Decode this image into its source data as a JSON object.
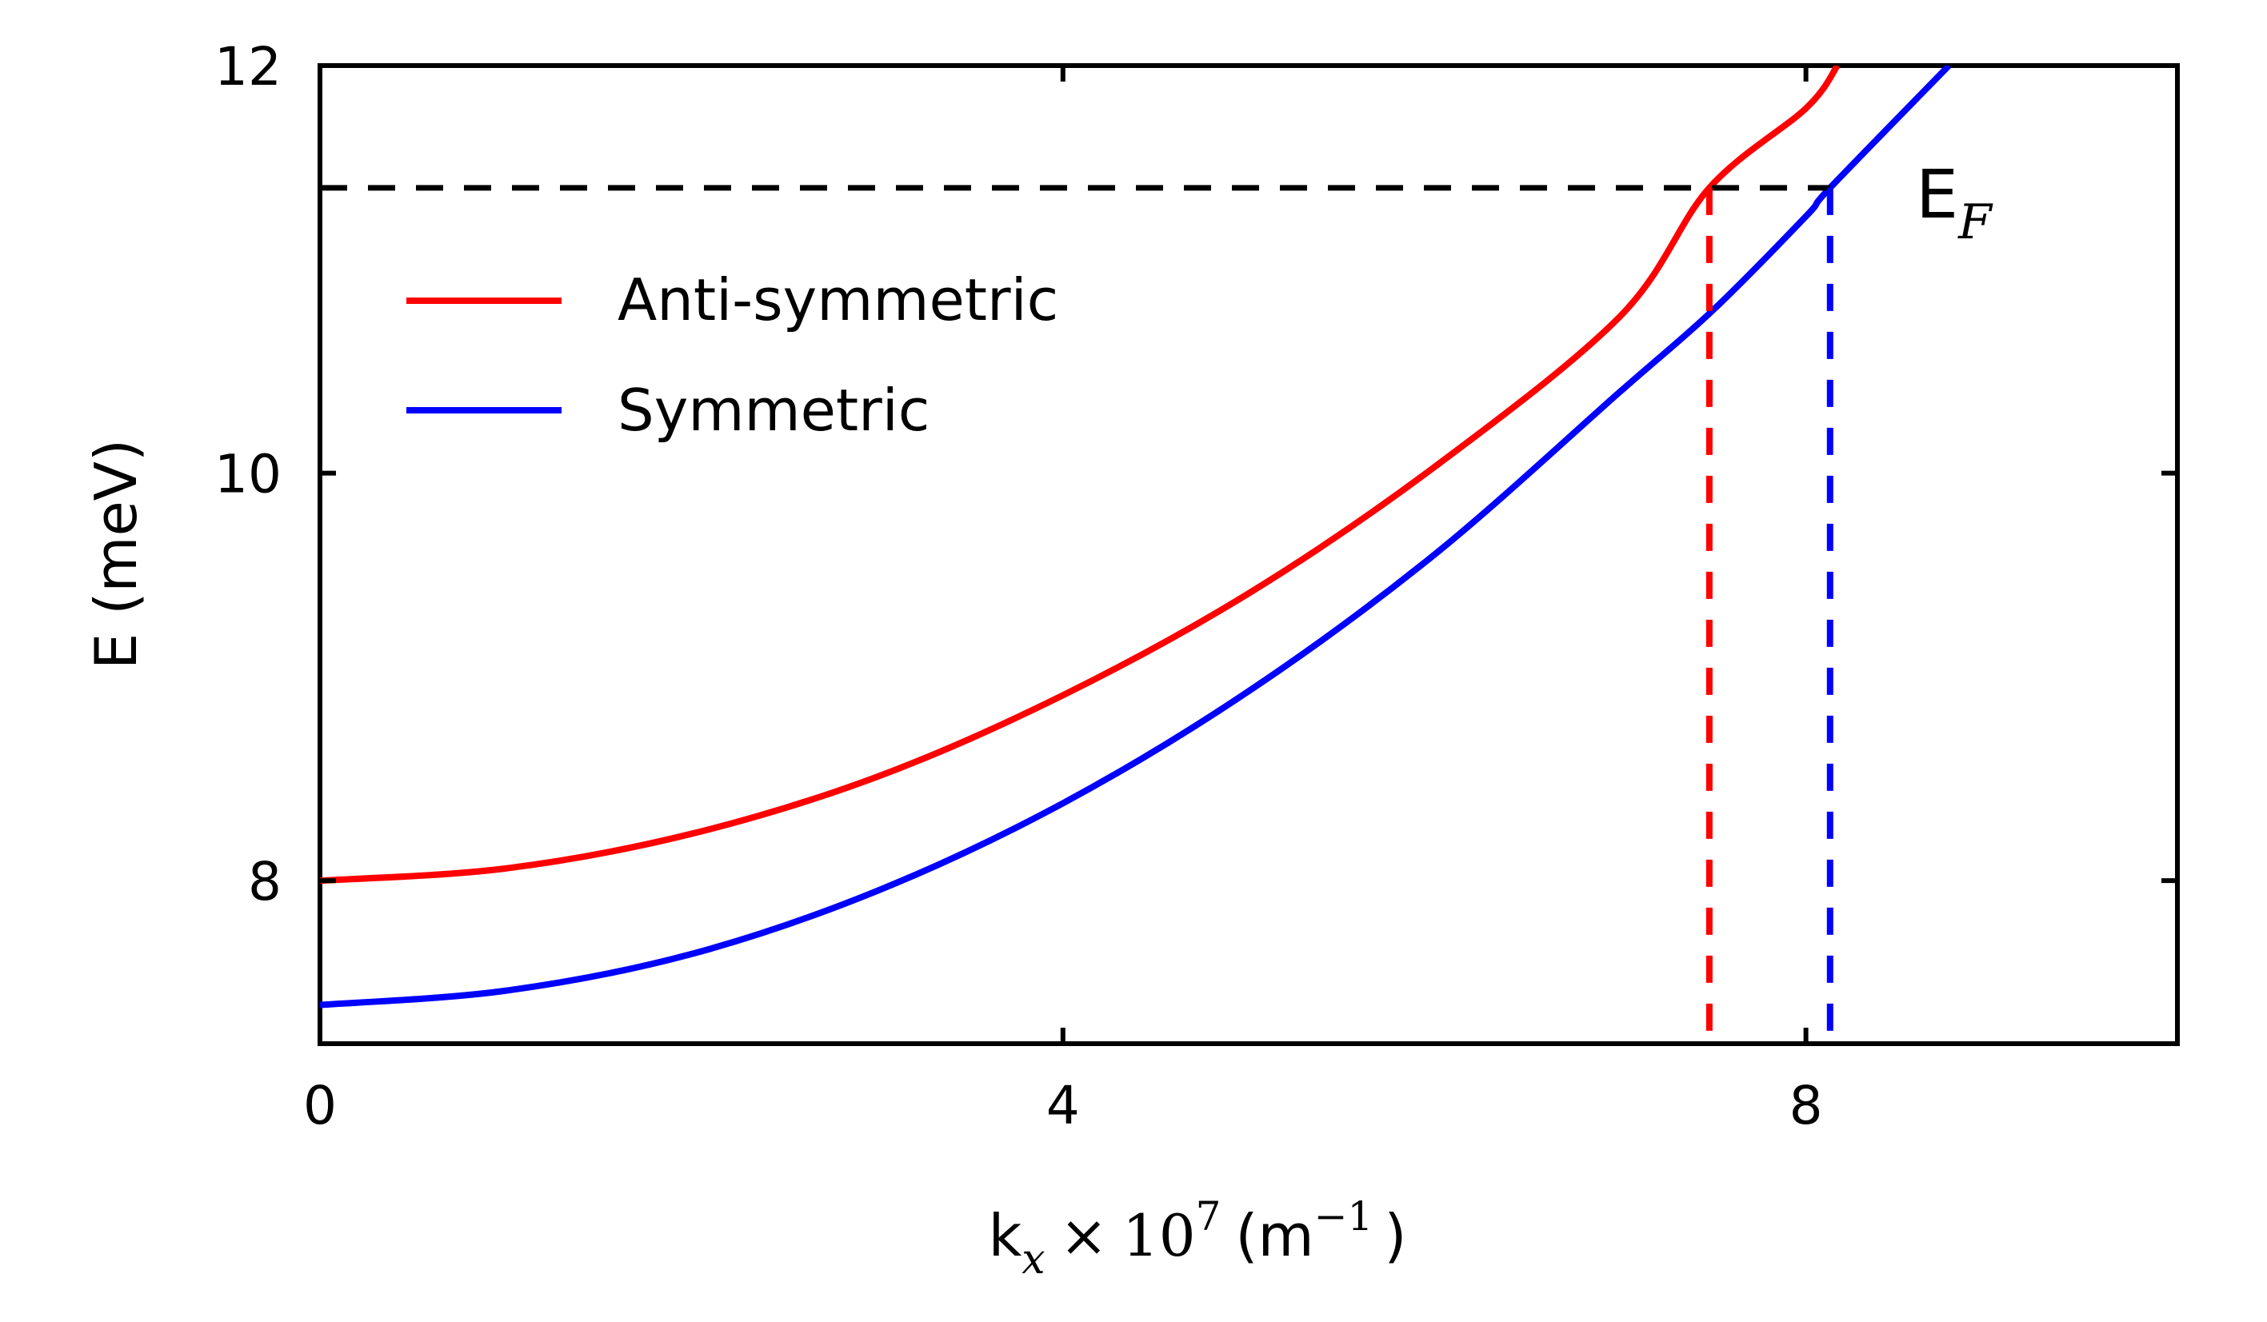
{
  "chart_data": {
    "type": "line",
    "xlabel": {
      "prefix": "k",
      "subscript": "x",
      "times": "×",
      "base": "10",
      "exponent": "7",
      "unit_open": "(m",
      "unit_exp": "−1",
      "unit_close": ")"
    },
    "ylabel": "E (meV)",
    "xlim": [
      0,
      10
    ],
    "ylim": [
      7.2,
      12
    ],
    "xticks": [
      0,
      4,
      8
    ],
    "yticks": [
      8,
      10,
      12
    ],
    "grid": false,
    "legend_position": "upper-left",
    "fermi_level": 11.4,
    "fermi_label": {
      "main": "E",
      "subscript": "F"
    },
    "series": [
      {
        "name": "Anti-symmetric",
        "color": "#ff0000",
        "x": [
          0,
          1,
          2,
          3,
          4,
          5,
          6,
          7,
          7.48,
          8,
          8.17
        ],
        "y": [
          8.0,
          8.06,
          8.23,
          8.51,
          8.91,
          9.41,
          10.03,
          10.77,
          11.4,
          11.79,
          12.0
        ]
      },
      {
        "name": "Symmetric",
        "color": "#0000ff",
        "x": [
          0,
          1,
          2,
          3,
          4,
          5,
          6,
          7,
          7.5,
          8,
          8.13,
          8.77
        ],
        "y": [
          7.39,
          7.46,
          7.64,
          7.95,
          8.38,
          8.93,
          9.6,
          10.4,
          10.8,
          11.26,
          11.4,
          12.0
        ]
      }
    ],
    "crossings": [
      {
        "series": "Anti-symmetric",
        "x": 7.48,
        "color": "#ff0000"
      },
      {
        "series": "Symmetric",
        "x": 8.13,
        "color": "#0000ff"
      }
    ]
  }
}
